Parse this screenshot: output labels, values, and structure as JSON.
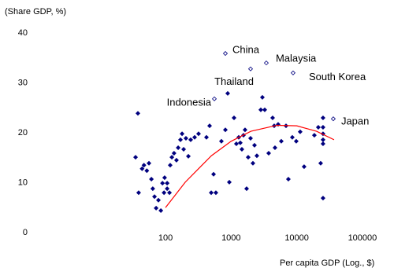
{
  "chart_data": {
    "type": "scatter",
    "y_label": "(Share GDP, %)",
    "x_label": "Per capita GDP (Log., $)",
    "xscale": "log",
    "xlim": [
      1,
      200000
    ],
    "ylim": [
      0,
      40
    ],
    "xticks": [
      100,
      1000,
      10000,
      100000
    ],
    "yticks": [
      0,
      10,
      20,
      30,
      40
    ],
    "grid": false,
    "series": [
      {
        "style": "filled",
        "color": "#00007f",
        "x": [
          95,
          106,
          35,
          39,
          38,
          44,
          47,
          52,
          56,
          61,
          64,
          68,
          72,
          78,
          85,
          90,
          97,
          106,
          115,
          118,
          125,
          135,
          147,
          156,
          169,
          179,
          189,
          205,
          223,
          242,
          278,
          319,
          421,
          470,
          497,
          540,
          586,
          711,
          817,
          887,
          938,
          1107,
          1202,
          1306,
          1380,
          1459,
          1542,
          1629,
          1722,
          1820,
          1977,
          2148,
          2270,
          2466,
          2831,
          2992,
          3251,
          3733,
          4285,
          4529,
          4656,
          5200,
          5808,
          6855,
          7447,
          8551,
          9817,
          11272,
          12942,
          18535,
          21281,
          23121,
          25119,
          25119,
          25119,
          25119,
          25119,
          25119
        ],
        "values": [
          8.0,
          9.9,
          15.1,
          8.0,
          23.9,
          12.8,
          13.5,
          12.4,
          13.9,
          10.7,
          8.8,
          7.2,
          4.9,
          6.5,
          4.4,
          9.9,
          11.0,
          8.8,
          8.0,
          13.5,
          15.1,
          15.9,
          14.5,
          17.0,
          18.6,
          19.8,
          16.7,
          18.9,
          15.3,
          18.6,
          19.1,
          19.8,
          19.1,
          21.4,
          8.0,
          11.7,
          8.0,
          18.3,
          20.6,
          27.9,
          10.1,
          23.0,
          17.8,
          19.1,
          18.0,
          16.7,
          19.5,
          20.6,
          8.8,
          15.1,
          18.9,
          13.9,
          17.5,
          15.4,
          24.6,
          27.1,
          24.6,
          15.9,
          23.0,
          21.4,
          17.0,
          21.7,
          18.3,
          21.4,
          10.7,
          19.1,
          18.3,
          20.2,
          13.2,
          19.5,
          21.1,
          13.9,
          23.0,
          21.1,
          19.8,
          18.6,
          17.8,
          6.9
        ]
      },
      {
        "style": "open",
        "color": "#00007f",
        "labels": [
          "Indonesia",
          "China",
          "Thailand",
          "Malaysia",
          "South Korea",
          "Japan"
        ],
        "x": [
          555,
          817,
          1977,
          3436,
          8790,
          36000
        ],
        "values": [
          26.8,
          35.9,
          32.8,
          34.0,
          32.0,
          22.8
        ]
      },
      {
        "style": "line",
        "color": "#ff0000",
        "x": [
          100,
          200,
          500,
          1000,
          2000,
          5000,
          10000,
          20000,
          37000
        ],
        "values": [
          5.0,
          10.1,
          15.4,
          18.3,
          20.3,
          21.5,
          21.4,
          20.3,
          18.6
        ]
      }
    ]
  }
}
